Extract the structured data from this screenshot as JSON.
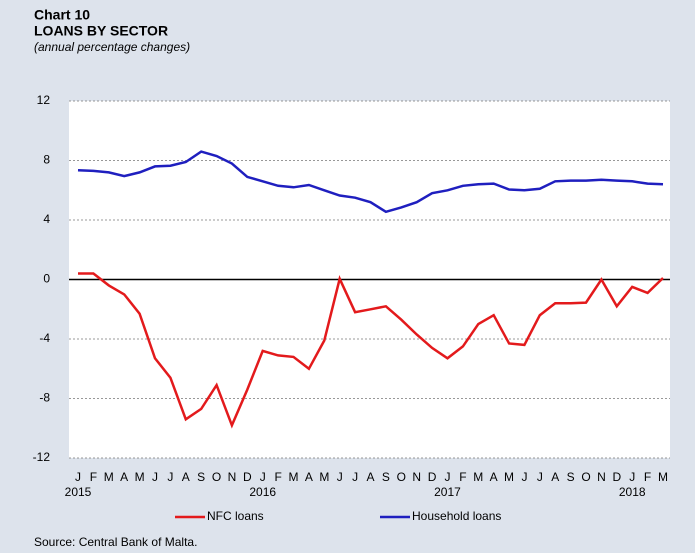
{
  "chart_data": {
    "type": "line",
    "title": "Chart  10",
    "subtitle": "LOANS BY SECTOR",
    "y_axis_label": "(annual percentage changes)",
    "source": "Source: Central Bank of Malta.",
    "categories": [
      "J",
      "F",
      "M",
      "A",
      "M",
      "J",
      "J",
      "A",
      "S",
      "O",
      "N",
      "D",
      "J",
      "F",
      "M",
      "A",
      "M",
      "J",
      "J",
      "A",
      "S",
      "O",
      "N",
      "D",
      "J",
      "F",
      "M",
      "A",
      "M",
      "J",
      "J",
      "A",
      "S",
      "O",
      "N",
      "D",
      "J",
      "F",
      "M"
    ],
    "year_labels": [
      "2015",
      null,
      null,
      null,
      null,
      null,
      null,
      null,
      null,
      null,
      null,
      null,
      "2016",
      null,
      null,
      null,
      null,
      null,
      null,
      null,
      null,
      null,
      null,
      null,
      "2017",
      null,
      null,
      null,
      null,
      null,
      null,
      null,
      null,
      null,
      null,
      null,
      "2018",
      null,
      null
    ],
    "series": [
      {
        "name": "NFC loans",
        "color": "#e31a1c",
        "values": [
          0.4,
          0.4,
          -0.4,
          -1.0,
          -2.3,
          -5.3,
          -6.6,
          -9.4,
          -8.7,
          -7.1,
          -9.8,
          -7.4,
          -4.8,
          -5.1,
          -5.2,
          -6.0,
          -4.1,
          0.05,
          -2.2,
          -2.0,
          -1.8,
          -2.7,
          -3.7,
          -4.6,
          -5.3,
          -4.5,
          -3.0,
          -2.4,
          -4.3,
          -4.4,
          -2.4,
          -1.6,
          -1.6,
          -1.55,
          0.0,
          -1.8,
          -0.5,
          -0.9,
          0.1
        ]
      },
      {
        "name": "Household loans",
        "color": "#1f1fbf",
        "values": [
          7.35,
          7.3,
          7.2,
          6.95,
          7.2,
          7.6,
          7.65,
          7.9,
          8.6,
          8.3,
          7.8,
          6.9,
          6.6,
          6.3,
          6.2,
          6.35,
          6.0,
          5.65,
          5.5,
          5.2,
          4.55,
          4.85,
          5.2,
          5.8,
          6.0,
          6.3,
          6.4,
          6.45,
          6.05,
          6.0,
          6.1,
          6.6,
          6.65,
          6.65,
          6.7,
          6.65,
          6.6,
          6.45,
          6.4
        ]
      }
    ],
    "ylim": [
      -12,
      12
    ],
    "yticks": [
      -12,
      -8,
      -4,
      0,
      4,
      8,
      12
    ],
    "grid": true,
    "legend": "bottom"
  }
}
